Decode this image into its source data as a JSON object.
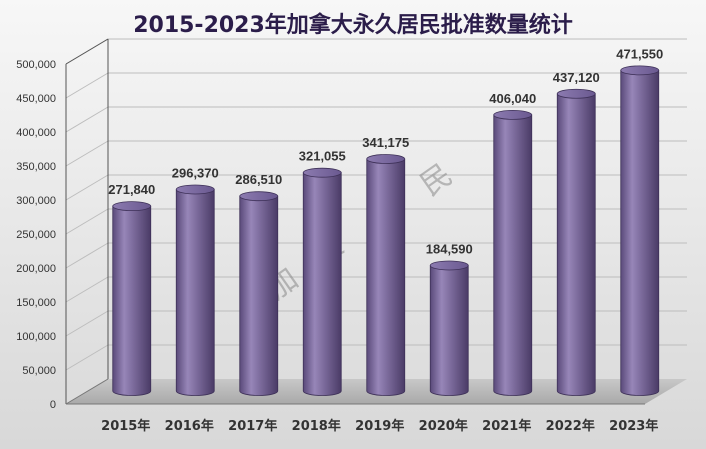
{
  "chart_data": {
    "type": "bar",
    "style": "3d-cylinder",
    "title": "2015-2023年加拿大永久居民批准数量统计",
    "categories": [
      "2015年",
      "2016年",
      "2017年",
      "2018年",
      "2019年",
      "2020年",
      "2021年",
      "2022年",
      "2023年"
    ],
    "values": [
      271840,
      296370,
      286510,
      321055,
      341175,
      184590,
      406040,
      437120,
      471550
    ],
    "data_labels": [
      "271,840",
      "296,370",
      "286,510",
      "321,055",
      "341,175",
      "184,590",
      "406,040",
      "437,120",
      "471,550"
    ],
    "ylim": [
      0,
      500000
    ],
    "y_ticks": [
      0,
      50000,
      100000,
      150000,
      200000,
      250000,
      300000,
      350000,
      400000,
      450000,
      500000
    ],
    "y_tick_labels": [
      "0",
      "50,000",
      "100,000",
      "150,000",
      "200,000",
      "250,000",
      "300,000",
      "350,000",
      "400,000",
      "450,000",
      "500,000"
    ],
    "xlabel": "",
    "ylabel": "",
    "grid": true,
    "legend": "none",
    "bar_color": "#7b6a9b",
    "title_color": "#2b1d4a",
    "watermark": "加 美 移 民"
  }
}
